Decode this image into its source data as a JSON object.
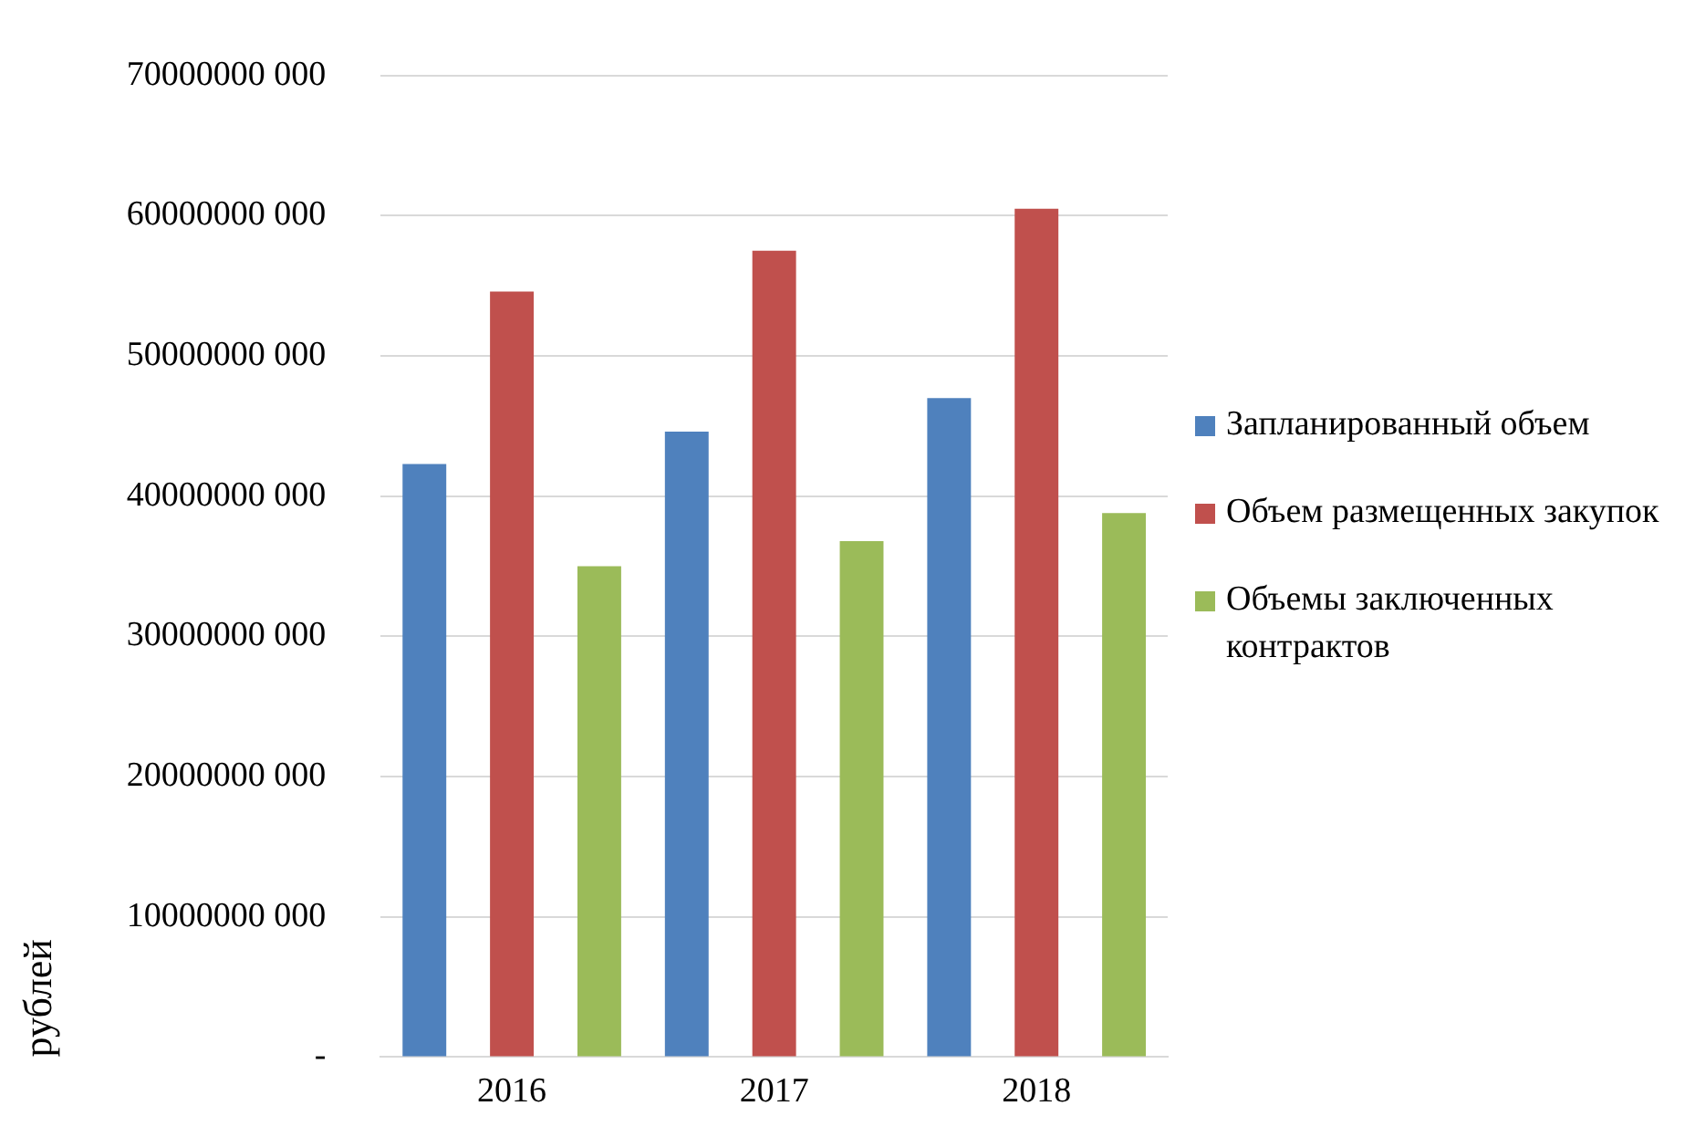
{
  "chart_data": {
    "type": "bar",
    "categories": [
      "2016",
      "2017",
      "2018"
    ],
    "series": [
      {
        "name": "Запланированный объем",
        "color": "#4f81bd",
        "values": [
          42300000000,
          44600000000,
          47000000000
        ]
      },
      {
        "name": "Объем размещенных закупок",
        "color": "#c0504d",
        "values": [
          54600000000,
          57500000000,
          60500000000
        ]
      },
      {
        "name": "Объемы заключенных контрактов",
        "color": "#9bbb59",
        "values": [
          35000000000,
          36800000000,
          38800000000
        ]
      }
    ],
    "ylabel": "рублей",
    "ylim": [
      0,
      70000000000
    ],
    "yticks": [
      {
        "value": 0,
        "label": "-"
      },
      {
        "value": 10000000000,
        "label": "10000000 000"
      },
      {
        "value": 20000000000,
        "label": "20000000 000"
      },
      {
        "value": 30000000000,
        "label": "30000000 000"
      },
      {
        "value": 40000000000,
        "label": "40000000 000"
      },
      {
        "value": 50000000000,
        "label": "50000000 000"
      },
      {
        "value": 60000000000,
        "label": "60000000 000"
      },
      {
        "value": 70000000000,
        "label": "70000000 000"
      }
    ],
    "grid": "y",
    "legend": "right"
  }
}
